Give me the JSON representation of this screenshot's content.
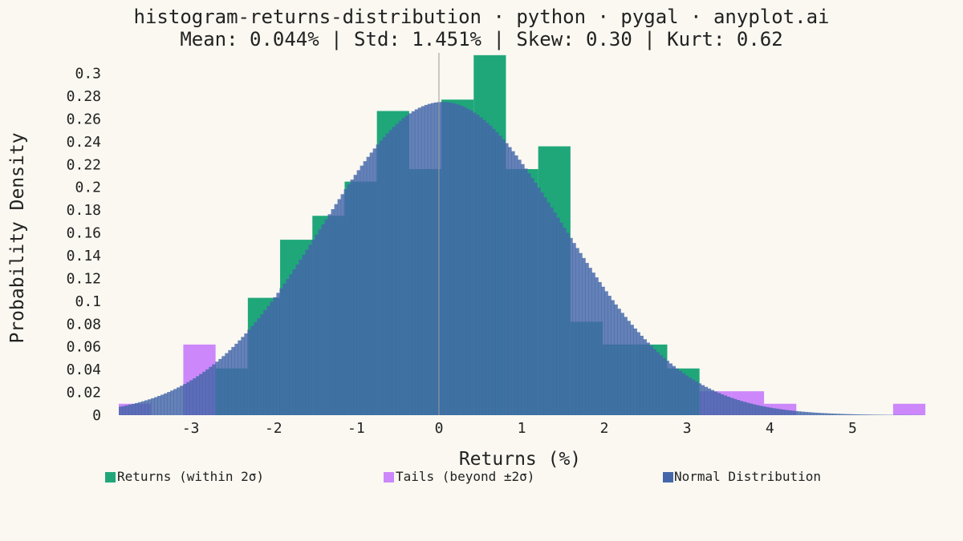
{
  "chart_data": {
    "type": "bar",
    "title": "histogram-returns-distribution · python · pygal · anyplot.ai",
    "subtitle": "Mean: 0.044% | Std: 1.451% | Skew: 0.30 | Kurt: 0.62",
    "xlabel": "Returns (%)",
    "ylabel": "Probability Density",
    "xlim": [
      -3.88,
      5.85
    ],
    "ylim": [
      0,
      0.318
    ],
    "x_ticks": [
      -3,
      -2,
      -1,
      0,
      1,
      2,
      3,
      4,
      5
    ],
    "x_tick_labels": [
      "-3",
      "-2",
      "-1",
      "0",
      "1",
      "2",
      "3",
      "4",
      "5"
    ],
    "y_ticks": [
      0,
      0.02,
      0.04,
      0.06,
      0.08,
      0.1,
      0.12,
      0.14,
      0.16,
      0.18,
      0.2,
      0.22,
      0.24,
      0.26,
      0.28,
      0.3
    ],
    "y_tick_labels": [
      "0",
      "0.02",
      "0.04",
      "0.06",
      "0.08",
      "0.1",
      "0.12",
      "0.14",
      "0.16",
      "0.18",
      "0.2",
      "0.22",
      "0.24",
      "0.26",
      "0.28",
      "0.3"
    ],
    "bin_width": 0.389,
    "series": [
      {
        "name": "Returns (within 2σ)",
        "color": "#1FA77A",
        "bins": [
          {
            "x0": -2.7,
            "x1": -2.31,
            "y": 0.041
          },
          {
            "x0": -2.31,
            "x1": -1.92,
            "y": 0.103
          },
          {
            "x0": -1.92,
            "x1": -1.53,
            "y": 0.154
          },
          {
            "x0": -1.53,
            "x1": -1.14,
            "y": 0.175
          },
          {
            "x0": -1.14,
            "x1": -0.75,
            "y": 0.205
          },
          {
            "x0": -0.75,
            "x1": -0.36,
            "y": 0.267
          },
          {
            "x0": -0.36,
            "x1": 0.03,
            "y": 0.216
          },
          {
            "x0": 0.03,
            "x1": 0.42,
            "y": 0.277
          },
          {
            "x0": 0.42,
            "x1": 0.81,
            "y": 0.316
          },
          {
            "x0": 0.81,
            "x1": 1.2,
            "y": 0.216
          },
          {
            "x0": 1.2,
            "x1": 1.59,
            "y": 0.236
          },
          {
            "x0": 1.59,
            "x1": 1.98,
            "y": 0.082
          },
          {
            "x0": 1.98,
            "x1": 2.37,
            "y": 0.062
          },
          {
            "x0": 2.37,
            "x1": 2.76,
            "y": 0.062
          },
          {
            "x0": 2.76,
            "x1": 3.15,
            "y": 0.041
          }
        ]
      },
      {
        "name": "Tails (beyond ±2σ)",
        "color": "#CC88FA",
        "bins": [
          {
            "x0": -3.87,
            "x1": -3.48,
            "y": 0.01
          },
          {
            "x0": -3.09,
            "x1": -2.7,
            "y": 0.062
          },
          {
            "x0": 3.15,
            "x1": 3.54,
            "y": 0.021
          },
          {
            "x0": 3.54,
            "x1": 3.93,
            "y": 0.021
          },
          {
            "x0": 3.93,
            "x1": 4.32,
            "y": 0.01
          },
          {
            "x0": 5.49,
            "x1": 5.88,
            "y": 0.01
          }
        ]
      },
      {
        "name": "Normal Distribution",
        "color": "#4467A9",
        "mean": 0.044,
        "std": 1.451,
        "x_start": -3.87,
        "x_end": 5.85
      }
    ],
    "legend_position": "bottom",
    "grid": false
  }
}
